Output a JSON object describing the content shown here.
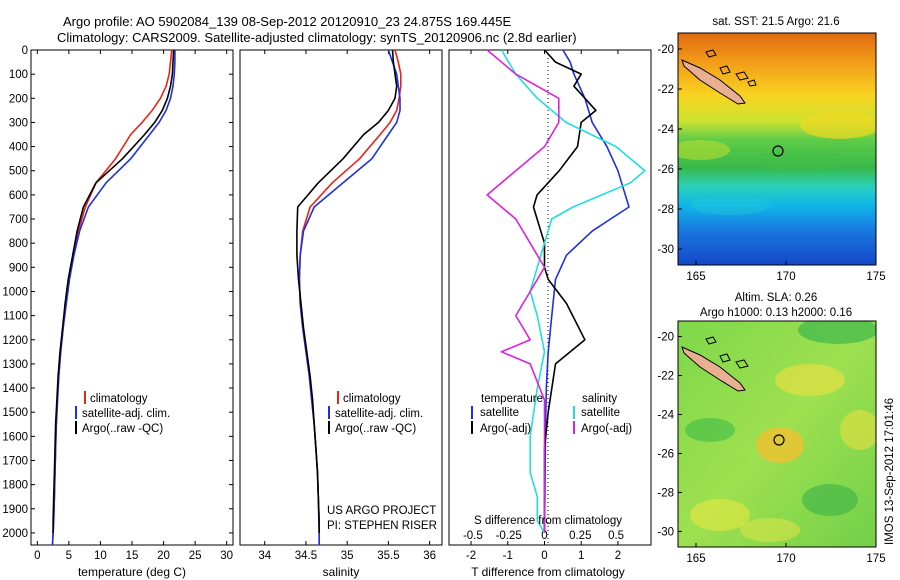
{
  "header": {
    "line1": "Argo profile: AO 5902084_139 08-Sep-2012 20120910_23 24.875S 169.445E",
    "line2": "Climatology: CARS2009. Satellite-adjusted climatology: synTS_20120906.nc (2.8d earlier)"
  },
  "colors": {
    "climatology": "#e8241a",
    "satellite": "#1f2fe0",
    "argo": "#000000",
    "sat_diff": "#22dde0",
    "argo_diff": "#dd22dd",
    "land": "#e8b090"
  },
  "labels": {
    "temperature_xlabel": "temperature (deg C)",
    "salinity_xlabel": "salinity",
    "diff_xlabel_t": "T difference from climatology",
    "diff_xlabel_s": "S difference from climatology",
    "project_line1": "US ARGO PROJECT",
    "project_line2": "PI: STEPHEN RISER",
    "legend_clim": "climatology",
    "legend_sat": "satellite-adj. clim.",
    "legend_argo": "Argo(..raw -QC)",
    "legend_temperature": "temperature",
    "legend_salinity": "salinity",
    "legend_satellite_t": "satellite",
    "legend_satellite_s": "satellite",
    "legend_argo_adj_t": "Argo(-adj)",
    "legend_argo_adj_s": "Argo(-adj)",
    "sst_title": "sat. SST: 21.5 Argo: 21.6",
    "sla_title1": "Altim. SLA: 0.26",
    "sla_title2": "Argo h1000: 0.13 h2000: 0.16",
    "credit": "IMOS 13-Sep-2012 17:01:46"
  },
  "chart_data": [
    {
      "id": "temperature",
      "type": "line",
      "xlim": [
        -1,
        31
      ],
      "ylim": [
        0,
        2050
      ],
      "yreversed": true,
      "xticks": [
        "0",
        "5",
        "10",
        "15",
        "20",
        "25",
        "30"
      ],
      "yticks": [
        "0",
        "100",
        "200",
        "300",
        "400",
        "500",
        "600",
        "700",
        "800",
        "900",
        "1000",
        "1100",
        "1200",
        "1300",
        "1400",
        "1500",
        "1600",
        "1700",
        "1800",
        "1900",
        "2000"
      ],
      "xlabel": "temperature (deg C)",
      "series": [
        {
          "name": "climatology",
          "color": "climatology",
          "x": [
            21.3,
            21.1,
            20.9,
            20.4,
            19.5,
            18.2,
            16.6,
            14.8,
            12.4,
            9.3,
            7.6,
            6.5,
            5.7,
            5.0,
            4.5,
            4.1,
            3.7,
            3.4,
            3.2,
            3.0,
            2.9,
            2.8,
            2.7,
            2.6,
            2.5,
            2.4
          ],
          "y": [
            0,
            50,
            100,
            150,
            200,
            250,
            300,
            350,
            450,
            550,
            650,
            750,
            850,
            950,
            1050,
            1150,
            1250,
            1350,
            1450,
            1550,
            1650,
            1750,
            1850,
            1950,
            2000,
            2050
          ]
        },
        {
          "name": "satellite-adj. clim.",
          "color": "satellite",
          "x": [
            21.8,
            21.8,
            21.7,
            21.5,
            21.1,
            20.4,
            19.3,
            17.8,
            14.8,
            10.9,
            8.1,
            6.7,
            5.8,
            5.1,
            4.6,
            4.1,
            3.7,
            3.4,
            3.2,
            3.0,
            2.9,
            2.8,
            2.7,
            2.6,
            2.5,
            2.4
          ],
          "y": [
            0,
            50,
            100,
            150,
            200,
            250,
            300,
            350,
            450,
            550,
            650,
            750,
            850,
            950,
            1050,
            1150,
            1250,
            1350,
            1450,
            1550,
            1650,
            1750,
            1850,
            1950,
            2000,
            2050
          ]
        },
        {
          "name": "Argo(..raw -QC)",
          "color": "argo",
          "x": [
            21.6,
            21.5,
            21.4,
            21.1,
            20.6,
            19.8,
            18.6,
            17.0,
            13.5,
            9.3,
            7.3,
            6.3,
            5.6,
            4.9,
            4.4,
            4.0,
            3.6,
            3.3,
            3.1,
            2.9,
            2.8,
            2.7,
            2.6,
            2.5,
            2.5
          ],
          "y": [
            0,
            50,
            100,
            150,
            200,
            250,
            300,
            350,
            450,
            550,
            650,
            750,
            850,
            950,
            1050,
            1150,
            1250,
            1350,
            1450,
            1550,
            1650,
            1750,
            1850,
            1950,
            2000
          ]
        }
      ],
      "legend": [
        "climatology",
        "satellite-adj. clim.",
        "Argo(..raw -QC)"
      ]
    },
    {
      "id": "salinity",
      "type": "line",
      "xlim": [
        33.7,
        36.15
      ],
      "ylim": [
        0,
        2050
      ],
      "yreversed": true,
      "xticks": [
        "34",
        "34.5",
        "35",
        "35.5",
        "36"
      ],
      "xlabel": "salinity",
      "series": [
        {
          "name": "climatology",
          "color": "climatology",
          "x": [
            35.58,
            35.62,
            35.65,
            35.65,
            35.63,
            35.6,
            35.52,
            35.4,
            35.15,
            34.82,
            34.55,
            34.46,
            34.43,
            34.42,
            34.43,
            34.46,
            34.5,
            34.54,
            34.57,
            34.6,
            34.62,
            34.64,
            34.65,
            34.66,
            34.66
          ],
          "y": [
            0,
            50,
            100,
            150,
            200,
            250,
            300,
            350,
            450,
            550,
            650,
            750,
            850,
            950,
            1050,
            1150,
            1250,
            1350,
            1450,
            1550,
            1650,
            1750,
            1850,
            1950,
            2050
          ]
        },
        {
          "name": "satellite-adj. clim.",
          "color": "satellite",
          "x": [
            35.5,
            35.55,
            35.6,
            35.62,
            35.64,
            35.64,
            35.6,
            35.5,
            35.3,
            34.95,
            34.6,
            34.47,
            34.43,
            34.42,
            34.43,
            34.46,
            34.5,
            34.54,
            34.57,
            34.6,
            34.62,
            34.64,
            34.65,
            34.66,
            34.66
          ],
          "y": [
            0,
            50,
            100,
            150,
            200,
            250,
            300,
            350,
            450,
            550,
            650,
            750,
            850,
            950,
            1050,
            1150,
            1250,
            1350,
            1450,
            1550,
            1650,
            1750,
            1850,
            1950,
            2050
          ]
        },
        {
          "name": "Argo(..raw -QC)",
          "color": "argo",
          "x": [
            35.55,
            35.56,
            35.58,
            35.6,
            35.58,
            35.5,
            35.38,
            35.2,
            34.95,
            34.65,
            34.4,
            34.39,
            34.39,
            34.41,
            34.44,
            34.47,
            34.51,
            34.55,
            34.58,
            34.6,
            34.62,
            34.64,
            34.65,
            34.66
          ],
          "y": [
            0,
            50,
            100,
            150,
            200,
            250,
            300,
            350,
            450,
            550,
            650,
            750,
            850,
            950,
            1050,
            1150,
            1250,
            1350,
            1450,
            1550,
            1650,
            1750,
            1850,
            2000
          ]
        }
      ],
      "legend": [
        "climatology",
        "satellite-adj. clim.",
        "Argo(..raw -QC)"
      ]
    },
    {
      "id": "difference",
      "type": "line",
      "xlim": [
        -2.6,
        2.9
      ],
      "ylim": [
        0,
        2050
      ],
      "yreversed": true,
      "xticks": [
        "-2",
        "-1",
        "0",
        "1",
        "2"
      ],
      "xticks_s": [
        "-0.5",
        "-0.25",
        "0",
        "0.25",
        "0.5"
      ],
      "xlabel": "T difference from climatology",
      "xlabel_top": "S difference from climatology",
      "series": [
        {
          "name": "satellite",
          "group": "temperature",
          "color": "satellite",
          "x": [
            0.5,
            0.7,
            0.8,
            1.1,
            1.3,
            1.7,
            2.0,
            2.1,
            2.2,
            2.3,
            1.8,
            1.3,
            0.6,
            0.3,
            0.2,
            0.1,
            0.05,
            0.03,
            0.02,
            0.01,
            0.0,
            0.0
          ],
          "y": [
            0,
            50,
            100,
            200,
            300,
            400,
            500,
            550,
            600,
            650,
            700,
            750,
            850,
            950,
            1100,
            1250,
            1400,
            1550,
            1700,
            1850,
            1950,
            2000
          ]
        },
        {
          "name": "Argo(-adj)",
          "group": "temperature",
          "color": "argo",
          "x": [
            0.0,
            0.3,
            1.0,
            0.8,
            1.4,
            1.0,
            0.9,
            0.4,
            -0.2,
            -0.3,
            -0.2,
            0.0,
            0.0,
            0.1,
            0.6,
            1.1,
            0.3,
            0.1,
            0.0,
            0.0,
            0.0,
            0.0
          ],
          "y": [
            0,
            50,
            100,
            150,
            250,
            300,
            400,
            500,
            600,
            650,
            700,
            800,
            900,
            950,
            1050,
            1200,
            1300,
            1500,
            1650,
            1800,
            1950,
            2000
          ]
        },
        {
          "name": "satellite",
          "group": "salinity",
          "color": "sat_diff",
          "x": [
            -0.3,
            -0.2,
            -0.05,
            0.15,
            0.5,
            0.7,
            0.6,
            0.4,
            0.2,
            0.05,
            0.0,
            -0.05,
            -0.1,
            -0.05,
            0.0,
            -0.05,
            -0.1,
            -0.1,
            -0.05,
            -0.05,
            0.0
          ],
          "y": [
            0,
            100,
            200,
            300,
            400,
            500,
            550,
            600,
            650,
            700,
            800,
            900,
            1000,
            1100,
            1250,
            1400,
            1600,
            1750,
            1850,
            1950,
            2000
          ]
        },
        {
          "name": "Argo(-adj)",
          "group": "salinity",
          "color": "argo_diff",
          "x": [
            -0.4,
            -0.2,
            0.1,
            0.1,
            0.0,
            -0.2,
            -0.4,
            -0.3,
            -0.2,
            -0.1,
            0.0,
            -0.1,
            -0.2,
            -0.1,
            -0.3,
            -0.1,
            0.0,
            0.0,
            0.0,
            0.0
          ],
          "y": [
            0,
            100,
            200,
            300,
            400,
            500,
            600,
            650,
            700,
            800,
            900,
            1000,
            1100,
            1200,
            1250,
            1300,
            1450,
            1650,
            1850,
            2000
          ]
        }
      ],
      "legend": [
        "temperature",
        "satellite",
        "Argo(-adj)",
        "salinity",
        "satellite",
        "Argo(-adj)"
      ]
    },
    {
      "id": "sst_map",
      "type": "heatmap",
      "title": "sat. SST: 21.5 Argo: 21.6",
      "xlim": [
        164,
        175
      ],
      "ylim": [
        -30.8,
        -19.2
      ],
      "xticks": [
        "165",
        "170",
        "175"
      ],
      "yticks": [
        "-20",
        "-22",
        "-24",
        "-26",
        "-28",
        "-30"
      ],
      "profile_marker": {
        "lon": 169.445,
        "lat": -24.875
      }
    },
    {
      "id": "sla_map",
      "type": "heatmap",
      "title": "Altim. SLA: 0.26",
      "subtitle": "Argo h1000: 0.13 h2000: 0.16",
      "xlim": [
        164,
        175
      ],
      "ylim": [
        -30.8,
        -19.2
      ],
      "xticks": [
        "165",
        "170",
        "175"
      ],
      "yticks": [
        "-20",
        "-22",
        "-24",
        "-26",
        "-28",
        "-30"
      ],
      "profile_marker": {
        "lon": 169.445,
        "lat": -24.875
      }
    }
  ]
}
